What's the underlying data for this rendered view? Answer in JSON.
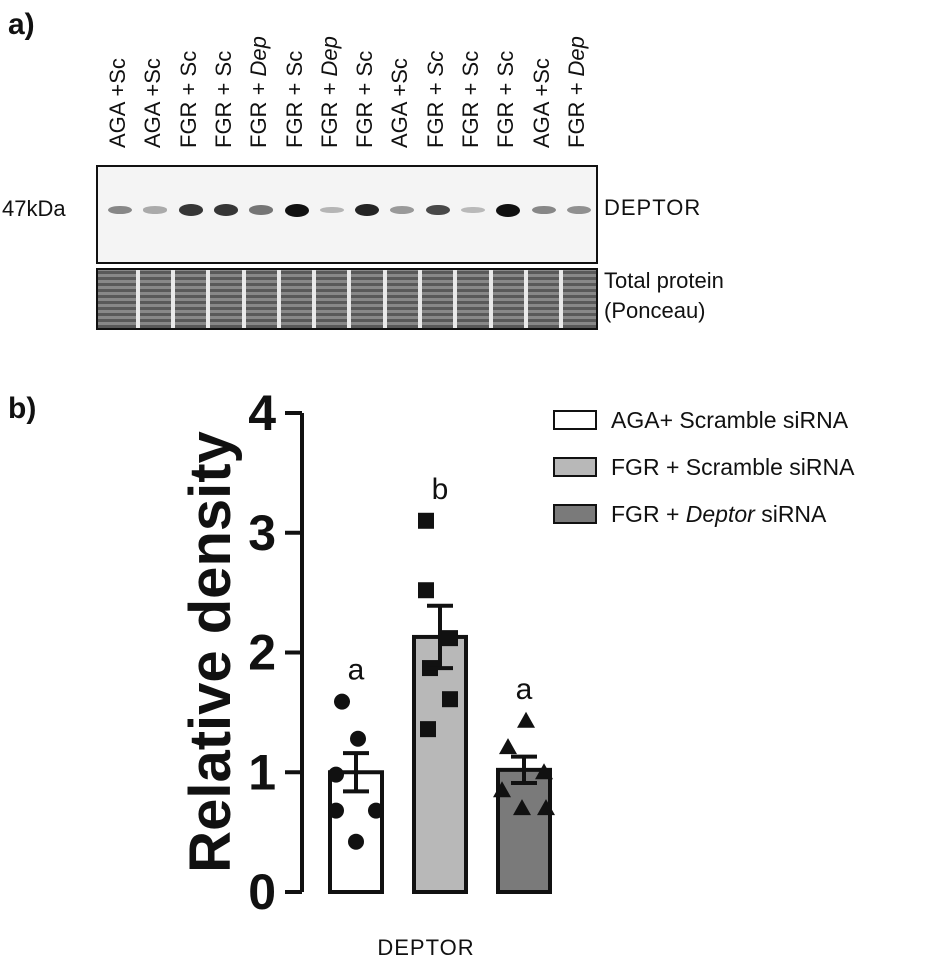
{
  "panel_a": {
    "label": "a)",
    "lanes": [
      {
        "group": "AGA",
        "treatment": "+Sc",
        "italic": false,
        "band": 0.35
      },
      {
        "group": "AGA",
        "treatment": "+Sc",
        "italic": false,
        "band": 0.15
      },
      {
        "group": "FGR",
        "treatment": "+ Sc",
        "italic": false,
        "band": 0.8
      },
      {
        "group": "FGR",
        "treatment": "+ Sc",
        "italic": false,
        "band": 0.8
      },
      {
        "group": "FGR",
        "treatment": "+ Dep",
        "italic": true,
        "band": 0.45
      },
      {
        "group": "FGR",
        "treatment": "+ Sc",
        "italic": false,
        "band": 1.0
      },
      {
        "group": "FGR",
        "treatment": "+ Dep",
        "italic": true,
        "band": 0.1
      },
      {
        "group": "FGR",
        "treatment": "+ Sc",
        "italic": false,
        "band": 0.9
      },
      {
        "group": "AGA",
        "treatment": "+Sc",
        "italic": false,
        "band": 0.25
      },
      {
        "group": "FGR",
        "treatment": "+ Sc",
        "italic": true,
        "band": 0.7
      },
      {
        "group": "FGR",
        "treatment": "+ Sc",
        "italic": false,
        "band": 0.08
      },
      {
        "group": "FGR",
        "treatment": "+ Sc",
        "italic": false,
        "band": 1.0
      },
      {
        "group": "AGA",
        "treatment": "+Sc",
        "italic": false,
        "band": 0.35
      },
      {
        "group": "FGR",
        "treatment": "+ Dep",
        "italic": true,
        "band": 0.3
      }
    ],
    "mw_label": "47kDa",
    "target_label": "DEPTOR",
    "loading_label_line1": "Total protein",
    "loading_label_line2": "(Ponceau)"
  },
  "panel_b": {
    "label": "b)"
  },
  "colors": {
    "aga_scramble": "#ffffff",
    "fgr_scramble": "#b8b8b8",
    "fgr_deptor": "#7a7a7a",
    "ink": "#111111"
  },
  "chart_data": {
    "type": "bar",
    "ylabel": "Relative density",
    "xlabel": "DEPTOR",
    "ylim": [
      0,
      4
    ],
    "yticks": [
      "0",
      "1",
      "2",
      "3",
      "4"
    ],
    "grid": false,
    "legend_position": "top-right",
    "series": [
      {
        "name_prefix": "AGA+ Scramble siRNA",
        "name_italic": "",
        "name_suffix": "",
        "value": 1.0,
        "sem": 0.16,
        "letter": "a",
        "marker": "circle",
        "points": [
          1.59,
          1.28,
          0.98,
          0.68,
          0.68,
          0.42
        ]
      },
      {
        "name_prefix": "FGR + Scramble siRNA",
        "name_italic": "",
        "name_suffix": "",
        "value": 2.13,
        "sem": 0.26,
        "letter": "b",
        "marker": "square",
        "points": [
          3.1,
          2.52,
          2.12,
          1.87,
          1.61,
          1.36
        ]
      },
      {
        "name_prefix": "FGR + ",
        "name_italic": "Deptor",
        "name_suffix": " siRNA",
        "value": 1.02,
        "sem": 0.11,
        "letter": "a",
        "marker": "triangle",
        "points": [
          1.43,
          1.21,
          1.0,
          0.85,
          0.7,
          0.7
        ]
      }
    ]
  }
}
